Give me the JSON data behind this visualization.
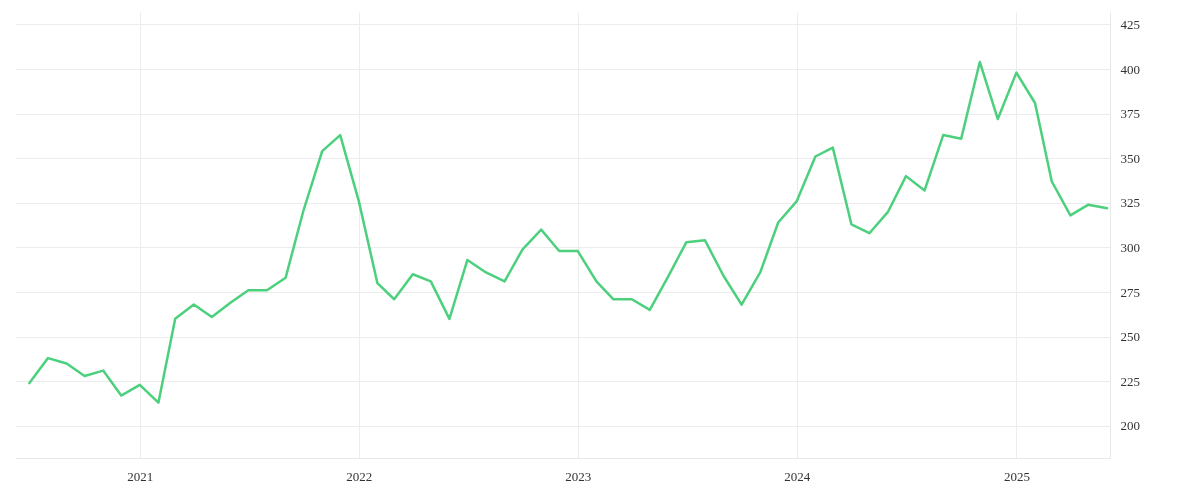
{
  "chart_data": {
    "type": "line",
    "x": [
      "2020-07",
      "2020-08",
      "2020-09",
      "2020-10",
      "2020-11",
      "2020-12",
      "2021-01",
      "2021-02",
      "2021-03",
      "2021-04",
      "2021-05",
      "2021-06",
      "2021-07",
      "2021-08",
      "2021-09",
      "2021-10",
      "2021-11",
      "2021-12",
      "2022-01",
      "2022-02",
      "2022-03",
      "2022-04",
      "2022-05",
      "2022-06",
      "2022-07",
      "2022-08",
      "2022-09",
      "2022-10",
      "2022-11",
      "2022-12",
      "2023-01",
      "2023-02",
      "2023-03",
      "2023-04",
      "2023-05",
      "2023-06",
      "2023-07",
      "2023-08",
      "2023-09",
      "2023-10",
      "2023-11",
      "2023-12",
      "2024-01",
      "2024-02",
      "2024-03",
      "2024-04",
      "2024-05",
      "2024-06",
      "2024-07",
      "2024-08",
      "2024-09",
      "2024-10",
      "2024-11",
      "2024-12",
      "2025-01",
      "2025-02",
      "2025-03",
      "2025-04",
      "2025-05",
      "2025-06"
    ],
    "series": [
      {
        "color": "#4cd07d",
        "values": [
          224,
          238,
          235,
          228,
          231,
          217,
          223,
          213,
          260,
          268,
          261,
          269,
          276,
          276,
          283,
          321,
          354,
          363,
          326,
          280,
          271,
          285,
          281,
          260,
          293,
          286,
          281,
          299,
          310,
          298,
          298,
          281,
          271,
          271,
          265,
          284,
          303,
          304,
          284,
          268,
          286,
          314,
          326,
          351,
          356,
          313,
          308,
          320,
          340,
          332,
          363,
          361,
          404,
          372,
          398,
          381,
          337,
          318,
          324,
          322
        ]
      }
    ],
    "xlim": [
      "2020-06-07",
      "2025-06-06"
    ],
    "xticks": [
      "2021",
      "2022",
      "2023",
      "2024",
      "2025"
    ],
    "ylim": [
      182,
      432
    ],
    "yticks": [
      200,
      225,
      250,
      275,
      300,
      325,
      350,
      375,
      400,
      425
    ],
    "grid": true,
    "marker": "none",
    "line_style": "solid"
  }
}
